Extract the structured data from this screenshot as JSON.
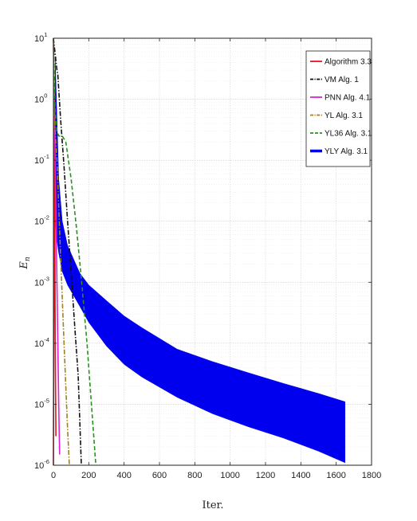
{
  "chart_data": {
    "type": "line",
    "title": "",
    "xlabel": "Iter.",
    "ylabel": "E",
    "ylabel_sub": "n",
    "xlim": [
      0,
      1800
    ],
    "ylim": [
      1e-06,
      10
    ],
    "yscale": "log",
    "grid": true,
    "legend_position": "top-right",
    "x_ticks": [
      "0",
      "200",
      "400",
      "600",
      "800",
      "1000",
      "1200",
      "1400",
      "1600",
      "1800"
    ],
    "y_ticks": [
      {
        "base": "10",
        "exp": "-6"
      },
      {
        "base": "10",
        "exp": "-5"
      },
      {
        "base": "10",
        "exp": "-4"
      },
      {
        "base": "10",
        "exp": "-3"
      },
      {
        "base": "10",
        "exp": "-2"
      },
      {
        "base": "10",
        "exp": "-1"
      },
      {
        "base": "10",
        "exp": "0"
      },
      {
        "base": "10",
        "exp": "1"
      }
    ],
    "series": [
      {
        "name": "Algorithm 3.3",
        "color": "#e8141b",
        "style": "solid",
        "points": [
          [
            0,
            1e-06
          ],
          [
            2,
            0.0001
          ],
          [
            4,
            0.05
          ],
          [
            6,
            1.0
          ],
          [
            8,
            0.005
          ],
          [
            10,
            0.0002
          ],
          [
            12,
            2e-05
          ],
          [
            14,
            3e-06
          ]
        ]
      },
      {
        "name": "VM Alg. 1",
        "color": "#111111",
        "style": "dashdot",
        "points": [
          [
            0,
            10
          ],
          [
            20,
            3
          ],
          [
            25,
            2.5
          ],
          [
            40,
            0.5
          ],
          [
            60,
            0.08
          ],
          [
            80,
            0.01
          ],
          [
            100,
            0.0015
          ],
          [
            120,
            0.0002
          ],
          [
            140,
            3e-05
          ],
          [
            158,
            1e-06
          ]
        ]
      },
      {
        "name": "PNN Alg. 4.1",
        "color": "#e020d0",
        "style": "solid",
        "points": [
          [
            0,
            10
          ],
          [
            5,
            1.0
          ],
          [
            10,
            0.1
          ],
          [
            15,
            0.01
          ],
          [
            20,
            0.001
          ],
          [
            25,
            0.0001
          ],
          [
            30,
            1e-05
          ],
          [
            35,
            1.5e-06
          ]
        ]
      },
      {
        "name": "YL Alg. 3.1",
        "color": "#a08020",
        "style": "dashdot",
        "points": [
          [
            0,
            10
          ],
          [
            5,
            0.5
          ],
          [
            10,
            0.3
          ],
          [
            20,
            0.1
          ],
          [
            40,
            0.003
          ],
          [
            60,
            0.0001
          ],
          [
            80,
            4e-06
          ],
          [
            90,
            1e-06
          ]
        ]
      },
      {
        "name": "YL36 Alg. 3.1",
        "color": "#2a9020",
        "style": "dashed",
        "points": [
          [
            0,
            10
          ],
          [
            10,
            0.6
          ],
          [
            20,
            0.3
          ],
          [
            30,
            0.25
          ],
          [
            50,
            0.25
          ],
          [
            70,
            0.2
          ],
          [
            100,
            0.05
          ],
          [
            130,
            0.008
          ],
          [
            160,
            0.001
          ],
          [
            190,
            0.0001
          ],
          [
            215,
            1e-05
          ],
          [
            240,
            1e-06
          ]
        ]
      }
    ],
    "band": {
      "name": "YLY Alg. 3.1",
      "color": "#0000ee",
      "upper": [
        [
          10,
          5.0
        ],
        [
          20,
          0.5
        ],
        [
          30,
          0.05
        ],
        [
          50,
          0.01
        ],
        [
          80,
          0.004
        ],
        [
          150,
          0.0014
        ],
        [
          200,
          0.0009
        ],
        [
          300,
          0.0005
        ],
        [
          400,
          0.00028
        ],
        [
          500,
          0.00018
        ],
        [
          700,
          8e-05
        ],
        [
          900,
          5e-05
        ],
        [
          1100,
          3.3e-05
        ],
        [
          1300,
          2.2e-05
        ],
        [
          1500,
          1.5e-05
        ],
        [
          1650,
          1.1e-05
        ]
      ],
      "lower": [
        [
          10,
          0.01
        ],
        [
          20,
          0.005
        ],
        [
          30,
          0.003
        ],
        [
          50,
          0.0015
        ],
        [
          80,
          0.0009
        ],
        [
          150,
          0.0004
        ],
        [
          200,
          0.00022
        ],
        [
          300,
          9e-05
        ],
        [
          400,
          4.5e-05
        ],
        [
          500,
          2.8e-05
        ],
        [
          700,
          1.3e-05
        ],
        [
          900,
          7e-06
        ],
        [
          1100,
          4.3e-06
        ],
        [
          1300,
          2.8e-06
        ],
        [
          1500,
          1.7e-06
        ],
        [
          1650,
          1.1e-06
        ]
      ]
    }
  }
}
